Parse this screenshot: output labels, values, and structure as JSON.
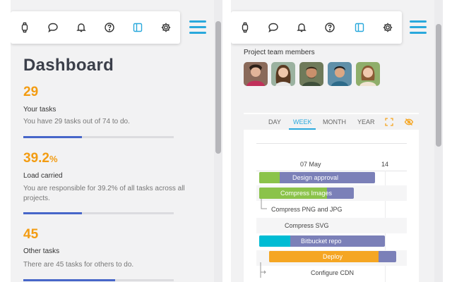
{
  "left_panel": {
    "title": "Dashboard",
    "stats": [
      {
        "value": "29",
        "unit": "",
        "label": "Your tasks",
        "description": "You have 29 tasks out of 74 to do.",
        "progress": 0.39
      },
      {
        "value": "39.2",
        "unit": "%",
        "label": "Load carried",
        "description": "You are responsible for 39.2% of all tasks across all projects.",
        "progress": 0.39
      },
      {
        "value": "45",
        "unit": "",
        "label": "Other tasks",
        "description": "There are 45 tasks for others to do.",
        "progress": 0.61
      }
    ]
  },
  "toolbar_icons": [
    "watch-icon",
    "chat-icon",
    "bell-icon",
    "help-icon",
    "sidebar-icon",
    "gear-icon"
  ],
  "right_panel": {
    "members_title": "Project team members",
    "tabs": {
      "day": "DAY",
      "week": "WEEK",
      "month": "MONTH",
      "year": "YEAR"
    },
    "dates": {
      "first": "07 May",
      "second": "14"
    },
    "tasks": {
      "design_approval": "Design approval",
      "compress_images": "Compress Images",
      "compress_png": "Compress PNG and JPG",
      "compress_svg": "Compress SVG",
      "bitbucket": "Bitbucket repo",
      "deploy": "Deploy",
      "configure_cdn": "Configure CDN"
    }
  },
  "colors": {
    "accent": "#29a8dc",
    "orange": "#f39c12",
    "progress": "#4766c9",
    "bar_purple": "#7b80b8",
    "bar_green": "#8bc34a",
    "bar_cyan": "#00bcd4",
    "bar_orange": "#f5a623"
  }
}
